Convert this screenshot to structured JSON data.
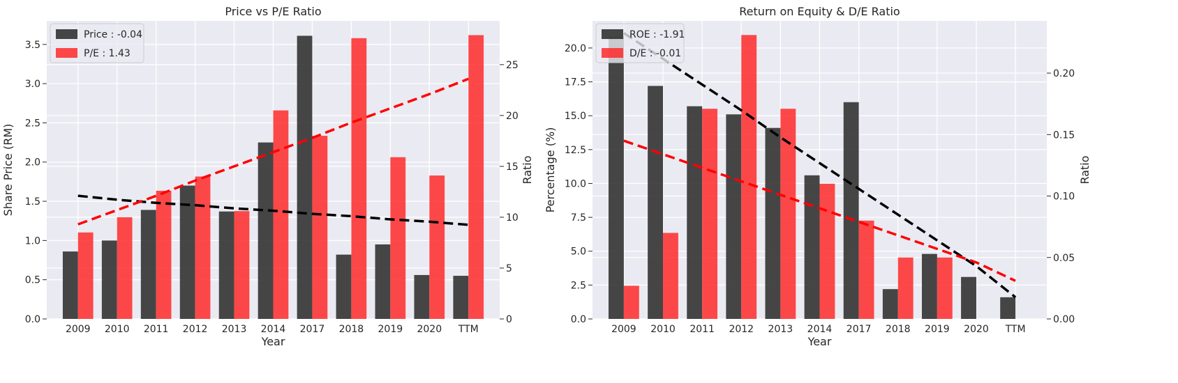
{
  "chart_data": [
    {
      "type": "bar",
      "title": "Price vs P/E Ratio",
      "xlabel": "Year",
      "ylabel": "Share Price (RM)",
      "y2label": "Ratio",
      "categories": [
        "2009",
        "2010",
        "2011",
        "2012",
        "2013",
        "2014",
        "2017",
        "2018",
        "2019",
        "2020",
        "TTM"
      ],
      "ylim": [
        0,
        3.8
      ],
      "y2lim": [
        0,
        29.3
      ],
      "yticks": [
        "0.0",
        "0.5",
        "1.0",
        "1.5",
        "2.0",
        "2.5",
        "3.0",
        "3.5"
      ],
      "y2ticks": [
        "0",
        "5",
        "10",
        "15",
        "20",
        "25"
      ],
      "legend_position": "upper left",
      "grid": true,
      "series": [
        {
          "name": "Price : -0.04",
          "axis": "left",
          "color": "#333333",
          "values": [
            0.86,
            1.0,
            1.39,
            1.7,
            1.37,
            2.25,
            3.61,
            0.82,
            0.95,
            0.56,
            0.55
          ],
          "trend": [
            1.57,
            1.52,
            1.48,
            1.45,
            1.41,
            1.38,
            1.34,
            1.31,
            1.27,
            1.24,
            1.2
          ]
        },
        {
          "name": "P/E : 1.43",
          "axis": "right",
          "color": "#ff2a2a",
          "values": [
            8.5,
            10.0,
            12.6,
            14.0,
            10.6,
            20.5,
            18.0,
            27.6,
            15.9,
            14.1,
            27.9
          ],
          "trend": [
            9.3,
            10.7,
            12.1,
            13.6,
            15.0,
            16.4,
            17.8,
            19.3,
            20.7,
            22.1,
            23.6
          ]
        }
      ]
    },
    {
      "type": "bar",
      "title": "Return on Equity & D/E Ratio",
      "xlabel": "Year",
      "ylabel": "Percentage (%)",
      "y2label": "Ratio",
      "categories": [
        "2009",
        "2010",
        "2011",
        "2012",
        "2013",
        "2014",
        "2017",
        "2018",
        "2019",
        "2020",
        "TTM"
      ],
      "ylim": [
        0,
        22.0
      ],
      "y2lim": [
        0,
        0.2425
      ],
      "yticks": [
        "0.0",
        "2.5",
        "5.0",
        "7.5",
        "10.0",
        "12.5",
        "15.0",
        "17.5",
        "20.0"
      ],
      "y2ticks": [
        "0.00",
        "0.05",
        "0.10",
        "0.15",
        "0.20"
      ],
      "legend_position": "upper left",
      "grid": true,
      "series": [
        {
          "name": "ROE : -1.91",
          "axis": "left",
          "color": "#333333",
          "values": [
            20.9,
            17.2,
            15.7,
            15.1,
            14.1,
            10.6,
            16.0,
            2.2,
            4.8,
            3.1,
            1.6
          ],
          "trend": [
            21.1,
            19.2,
            17.3,
            15.4,
            13.4,
            11.5,
            9.6,
            7.7,
            5.8,
            3.9,
            1.6
          ]
        },
        {
          "name": "D/E : -0.01",
          "axis": "right",
          "color": "#ff2a2a",
          "values": [
            0.027,
            0.07,
            0.171,
            0.231,
            0.171,
            0.11,
            0.08,
            0.05,
            0.05,
            0.0,
            0.0
          ],
          "trend": [
            0.145,
            0.134,
            0.123,
            0.112,
            0.101,
            0.09,
            0.079,
            0.068,
            0.057,
            0.046,
            0.031
          ]
        }
      ]
    }
  ]
}
